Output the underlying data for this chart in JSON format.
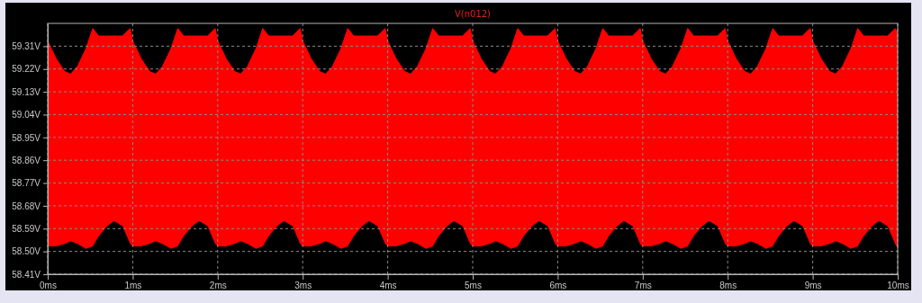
{
  "chart_data": {
    "type": "line",
    "title": "V(n012)",
    "x": [
      0,
      0.1,
      0.2,
      0.27,
      0.35,
      0.45,
      0.53,
      0.6,
      0.7,
      0.78,
      0.88,
      0.97,
      1,
      1.1,
      1.2,
      1.27,
      1.35,
      1.45,
      1.53,
      1.6,
      1.7,
      1.78,
      1.88,
      1.97,
      2,
      2.1,
      2.2,
      2.27,
      2.35,
      2.45,
      2.53,
      2.6,
      2.7,
      2.78,
      2.88,
      2.97,
      3,
      3.1,
      3.2,
      3.27,
      3.35,
      3.45,
      3.53,
      3.6,
      3.7,
      3.78,
      3.88,
      3.97,
      4,
      4.1,
      4.2,
      4.27,
      4.35,
      4.45,
      4.53,
      4.6,
      4.7,
      4.78,
      4.88,
      4.97,
      5,
      5.1,
      5.2,
      5.27,
      5.35,
      5.45,
      5.53,
      5.6,
      5.7,
      5.78,
      5.88,
      5.97,
      6,
      6.1,
      6.2,
      6.27,
      6.35,
      6.45,
      6.53,
      6.6,
      6.7,
      6.78,
      6.88,
      6.97,
      7,
      7.1,
      7.2,
      7.27,
      7.35,
      7.45,
      7.53,
      7.6,
      7.7,
      7.78,
      7.88,
      7.97,
      8,
      8.1,
      8.2,
      8.27,
      8.35,
      8.45,
      8.53,
      8.6,
      8.7,
      8.78,
      8.88,
      8.97,
      9,
      9.1,
      9.2,
      9.27,
      9.35,
      9.45,
      9.53,
      9.6,
      9.7,
      9.78,
      9.88,
      9.97,
      10
    ],
    "series": [
      {
        "color": "#ff0000",
        "values": [
          59.33,
          59.26,
          59.21,
          59.2,
          59.23,
          59.3,
          59.38,
          59.35,
          59.35,
          59.35,
          59.35,
          59.38,
          59.33,
          59.26,
          59.21,
          59.2,
          59.23,
          59.3,
          59.38,
          59.35,
          59.35,
          59.35,
          59.35,
          59.38,
          59.33,
          59.26,
          59.21,
          59.2,
          59.23,
          59.3,
          59.38,
          59.35,
          59.35,
          59.35,
          59.35,
          59.38,
          59.33,
          59.26,
          59.21,
          59.2,
          59.23,
          59.3,
          59.38,
          59.35,
          59.35,
          59.35,
          59.35,
          59.38,
          59.33,
          59.26,
          59.21,
          59.2,
          59.23,
          59.3,
          59.38,
          59.35,
          59.35,
          59.35,
          59.35,
          59.38,
          59.33,
          59.26,
          59.21,
          59.2,
          59.23,
          59.3,
          59.38,
          59.35,
          59.35,
          59.35,
          59.35,
          59.38,
          59.33,
          59.26,
          59.21,
          59.2,
          59.23,
          59.3,
          59.38,
          59.35,
          59.35,
          59.35,
          59.35,
          59.38,
          59.33,
          59.26,
          59.21,
          59.2,
          59.23,
          59.3,
          59.38,
          59.35,
          59.35,
          59.35,
          59.35,
          59.38,
          59.33,
          59.26,
          59.21,
          59.2,
          59.23,
          59.3,
          59.38,
          59.35,
          59.35,
          59.35,
          59.35,
          59.38,
          59.33,
          59.26,
          59.21,
          59.2,
          59.23,
          59.3,
          59.38,
          59.35,
          59.35,
          59.35,
          59.35,
          59.38,
          59.36
        ],
        "upper": [
          59.33,
          59.26,
          59.21,
          59.2,
          59.23,
          59.3,
          59.38,
          59.35,
          59.35,
          59.35,
          59.35,
          59.38,
          59.33,
          59.26,
          59.21,
          59.2,
          59.23,
          59.3,
          59.38,
          59.35,
          59.35,
          59.35,
          59.35,
          59.38,
          59.33,
          59.26,
          59.21,
          59.2,
          59.23,
          59.3,
          59.38,
          59.35,
          59.35,
          59.35,
          59.35,
          59.38,
          59.33,
          59.26,
          59.21,
          59.2,
          59.23,
          59.3,
          59.38,
          59.35,
          59.35,
          59.35,
          59.35,
          59.38,
          59.33,
          59.26,
          59.21,
          59.2,
          59.23,
          59.3,
          59.38,
          59.35,
          59.35,
          59.35,
          59.35,
          59.38,
          59.33,
          59.26,
          59.21,
          59.2,
          59.23,
          59.3,
          59.38,
          59.35,
          59.35,
          59.35,
          59.35,
          59.38,
          59.33,
          59.26,
          59.21,
          59.2,
          59.23,
          59.3,
          59.38,
          59.35,
          59.35,
          59.35,
          59.35,
          59.38,
          59.33,
          59.26,
          59.21,
          59.2,
          59.23,
          59.3,
          59.38,
          59.35,
          59.35,
          59.35,
          59.35,
          59.38,
          59.33,
          59.26,
          59.21,
          59.2,
          59.23,
          59.3,
          59.38,
          59.35,
          59.35,
          59.35,
          59.35,
          59.38,
          59.33,
          59.26,
          59.21,
          59.2,
          59.23,
          59.3,
          59.38,
          59.35,
          59.35,
          59.35,
          59.35,
          59.38,
          59.36
        ],
        "lower": [
          58.52,
          58.52,
          58.53,
          58.54,
          58.53,
          58.51,
          58.52,
          58.56,
          58.6,
          58.62,
          58.6,
          58.53,
          58.52,
          58.52,
          58.53,
          58.54,
          58.53,
          58.51,
          58.52,
          58.56,
          58.6,
          58.62,
          58.6,
          58.53,
          58.52,
          58.52,
          58.53,
          58.54,
          58.53,
          58.51,
          58.52,
          58.56,
          58.6,
          58.62,
          58.6,
          58.53,
          58.52,
          58.52,
          58.53,
          58.54,
          58.53,
          58.51,
          58.52,
          58.56,
          58.6,
          58.62,
          58.6,
          58.53,
          58.52,
          58.52,
          58.53,
          58.54,
          58.53,
          58.51,
          58.52,
          58.56,
          58.6,
          58.62,
          58.6,
          58.53,
          58.52,
          58.52,
          58.53,
          58.54,
          58.53,
          58.51,
          58.52,
          58.56,
          58.6,
          58.62,
          58.6,
          58.53,
          58.52,
          58.52,
          58.53,
          58.54,
          58.53,
          58.51,
          58.52,
          58.56,
          58.6,
          58.62,
          58.6,
          58.53,
          58.52,
          58.52,
          58.53,
          58.54,
          58.53,
          58.51,
          58.52,
          58.56,
          58.6,
          58.62,
          58.6,
          58.53,
          58.52,
          58.52,
          58.53,
          58.54,
          58.53,
          58.51,
          58.52,
          58.56,
          58.6,
          58.62,
          58.6,
          58.53,
          58.52,
          58.52,
          58.53,
          58.54,
          58.53,
          58.51,
          58.52,
          58.56,
          58.6,
          58.62,
          58.6,
          58.53,
          58.51
        ]
      }
    ],
    "xlim": [
      0,
      10
    ],
    "xticks": [
      {
        "value": 0,
        "label": "0ms"
      },
      {
        "value": 1,
        "label": "1ms"
      },
      {
        "value": 2,
        "label": "2ms"
      },
      {
        "value": 3,
        "label": "3ms"
      },
      {
        "value": 4,
        "label": "4ms"
      },
      {
        "value": 5,
        "label": "5ms"
      },
      {
        "value": 6,
        "label": "6ms"
      },
      {
        "value": 7,
        "label": "7ms"
      },
      {
        "value": 8,
        "label": "8ms"
      },
      {
        "value": 9,
        "label": "9ms"
      },
      {
        "value": 10,
        "label": "10ms"
      }
    ],
    "ylim": [
      58.41,
      59.4
    ],
    "yticks": [
      {
        "value": 58.41,
        "label": "58.41V"
      },
      {
        "value": 58.5,
        "label": "58.50V"
      },
      {
        "value": 58.59,
        "label": "58.59V"
      },
      {
        "value": 58.68,
        "label": "58.68V"
      },
      {
        "value": 58.77,
        "label": "58.77V"
      },
      {
        "value": 58.86,
        "label": "58.86V"
      },
      {
        "value": 58.95,
        "label": "58.95V"
      },
      {
        "value": 59.04,
        "label": "59.04V"
      },
      {
        "value": 59.13,
        "label": "59.13V"
      },
      {
        "value": 59.22,
        "label": "59.22V"
      },
      {
        "value": 59.31,
        "label": "59.31V"
      }
    ],
    "grid": true
  }
}
